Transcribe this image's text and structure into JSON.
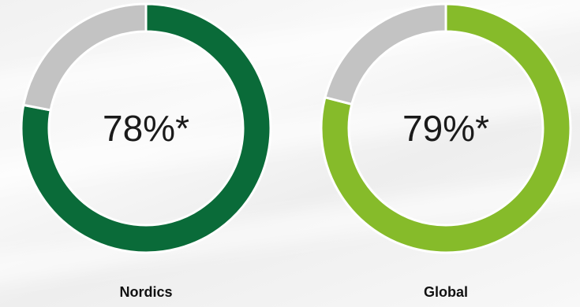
{
  "chart_data": {
    "type": "pie",
    "variant": "donut",
    "series": [
      {
        "name": "Nordics",
        "value": 78,
        "display": "78%*",
        "color": "#0a6b39",
        "remainder_color": "#c3c3c3"
      },
      {
        "name": "Global",
        "value": 79,
        "display": "79%*",
        "color": "#86bb2a",
        "remainder_color": "#c3c3c3"
      }
    ]
  }
}
